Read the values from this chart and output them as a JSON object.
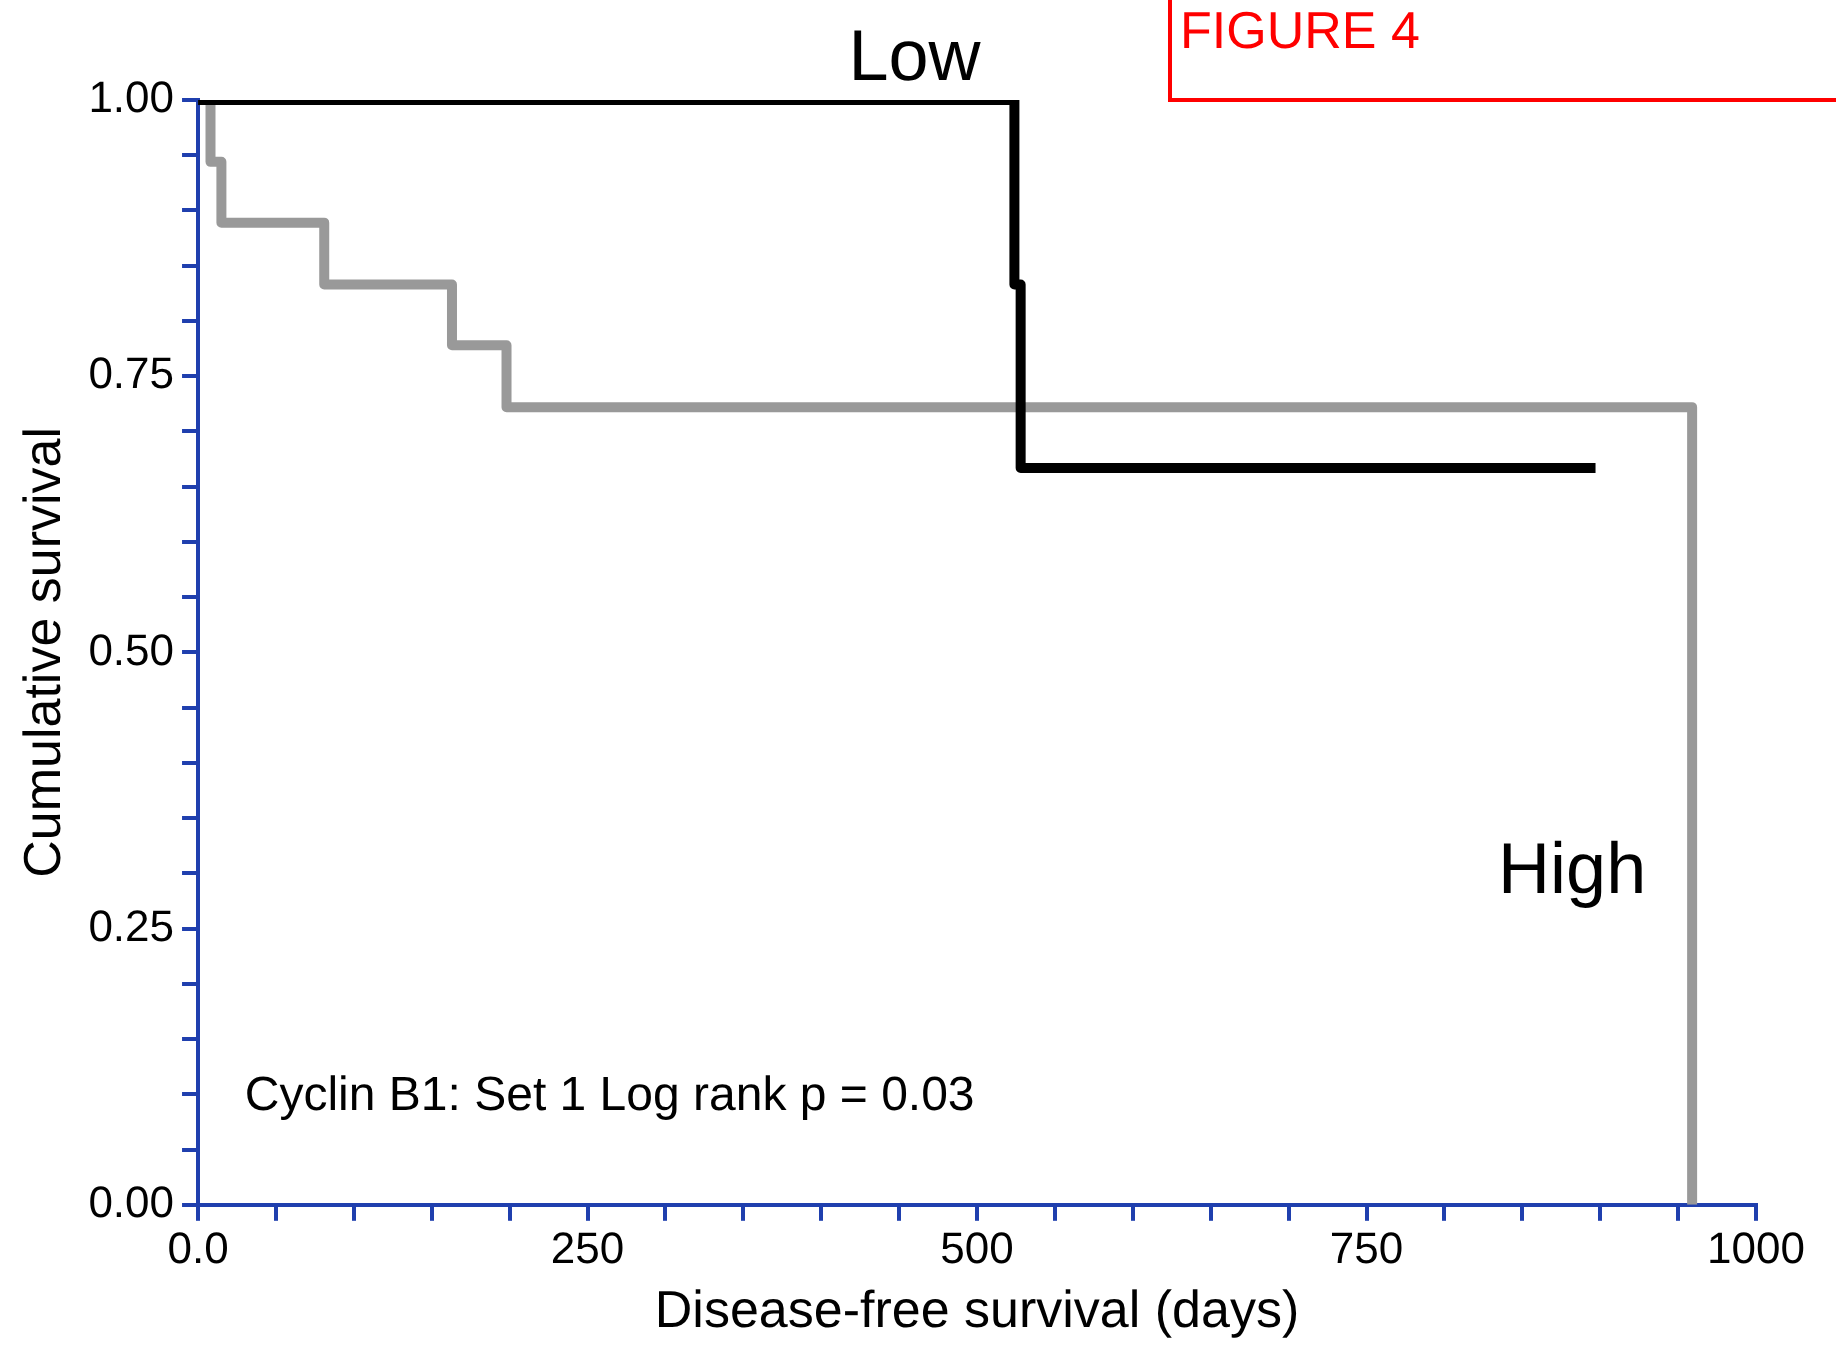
{
  "chart_data": {
    "type": "step",
    "xlabel": "Disease-free survival (days)",
    "ylabel": "Cumulative survival",
    "annotations": [
      "FIGURE 4",
      "Cyclin B1: Set 1 Log rank p = 0.03"
    ],
    "xlim": [
      0,
      1000
    ],
    "ylim": [
      0,
      1
    ],
    "xticks": [
      {
        "value": 0,
        "label": "0.0"
      },
      {
        "value": 50,
        "label": null
      },
      {
        "value": 100,
        "label": null
      },
      {
        "value": 150,
        "label": null
      },
      {
        "value": 200,
        "label": null
      },
      250,
      {
        "value": 300,
        "label": null
      },
      {
        "value": 350,
        "label": null
      },
      {
        "value": 400,
        "label": null
      },
      {
        "value": 450,
        "label": null
      },
      500,
      {
        "value": 550,
        "label": null
      },
      {
        "value": 600,
        "label": null
      },
      {
        "value": 650,
        "label": null
      },
      {
        "value": 700,
        "label": null
      },
      750,
      {
        "value": 800,
        "label": null
      },
      {
        "value": 850,
        "label": null
      },
      {
        "value": 900,
        "label": null
      },
      {
        "value": 950,
        "label": null
      },
      1000
    ],
    "yticks": [
      {
        "value": 0,
        "label": "0.00"
      },
      {
        "value": 0.05,
        "label": null
      },
      {
        "value": 0.1,
        "label": null
      },
      {
        "value": 0.15,
        "label": null
      },
      {
        "value": 0.2,
        "label": null
      },
      {
        "value": 0.25,
        "label": "0.25"
      },
      {
        "value": 0.3,
        "label": null
      },
      {
        "value": 0.35,
        "label": null
      },
      {
        "value": 0.4,
        "label": null
      },
      {
        "value": 0.45,
        "label": null
      },
      {
        "value": 0.5,
        "label": "0.50"
      },
      {
        "value": 0.55,
        "label": null
      },
      {
        "value": 0.6,
        "label": null
      },
      {
        "value": 0.65,
        "label": null
      },
      {
        "value": 0.7,
        "label": null
      },
      {
        "value": 0.75,
        "label": "0.75"
      },
      {
        "value": 0.8,
        "label": null
      },
      {
        "value": 0.85,
        "label": null
      },
      {
        "value": 0.9,
        "label": null
      },
      {
        "value": 0.95,
        "label": null
      },
      {
        "value": 1,
        "label": "1.00"
      }
    ],
    "grid": false,
    "legend": false,
    "marker": "none",
    "line_style": "solid",
    "series": [
      {
        "name": "Low",
        "color": "#000000",
        "x": [
          0,
          524,
          528,
          897
        ],
        "values": [
          1,
          0.833,
          0.667,
          0.667
        ]
      },
      {
        "name": "High",
        "color": "#999999",
        "x": [
          0,
          8,
          15,
          81,
          163,
          198,
          959
        ],
        "values": [
          1,
          0.944,
          0.889,
          0.833,
          0.778,
          0.722,
          0
        ]
      }
    ]
  }
}
